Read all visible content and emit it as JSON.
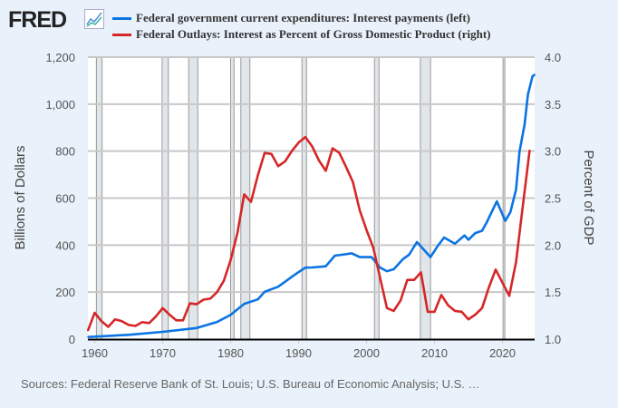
{
  "logo": "FRED",
  "chart_data": {
    "type": "line",
    "legend": "top",
    "grid": true,
    "xlim": [
      1959,
      2024.9
    ],
    "x_ticks": [
      "1960",
      "1970",
      "1980",
      "1990",
      "2000",
      "2010",
      "2020"
    ],
    "y_left": {
      "label": "Billions of Dollars",
      "range": [
        0,
        1200
      ],
      "ticks": [
        "0",
        "200",
        "400",
        "600",
        "800",
        "1,000",
        "1,200"
      ]
    },
    "y_right": {
      "label": "Percent of GDP",
      "range": [
        1.0,
        4.0
      ],
      "ticks": [
        "1.0",
        "1.5",
        "2.0",
        "2.5",
        "3.0",
        "3.5",
        "4.0"
      ]
    },
    "recessions": [
      [
        "1960-04",
        "1961-02"
      ],
      [
        "1969-12",
        "1970-11"
      ],
      [
        "1973-11",
        "1975-03"
      ],
      [
        "1980-01",
        "1980-07"
      ],
      [
        "1981-07",
        "1982-11"
      ],
      [
        "1990-07",
        "1991-03"
      ],
      [
        "2001-03",
        "2001-11"
      ],
      [
        "2007-12",
        "2009-06"
      ],
      [
        "2020-02",
        "2020-04"
      ]
    ],
    "series": [
      {
        "name": "Federal government current expenditures: Interest payments (left)",
        "axis": "left",
        "color": "#0b74e3",
        "x": [
          "1959-01",
          "1965-01",
          "1970-01",
          "1975-01",
          "1978-01",
          "1980-01",
          "1982-01",
          "1984-01",
          "1985-01",
          "1987-01",
          "1988-01",
          "1989-01",
          "1990-01",
          "1991-01",
          "1992-01",
          "1994-01",
          "1995-05",
          "1997-11",
          "1999-01",
          "2000-10",
          "2002-01",
          "2003-01",
          "2004-01",
          "2005-06",
          "2006-04",
          "2007-06",
          "2008-06",
          "2009-06",
          "2010-06",
          "2011-06",
          "2013-01",
          "2014-06",
          "2015-01",
          "2016-01",
          "2017-01",
          "2017-09",
          "2019-03",
          "2020-06",
          "2021-03",
          "2022-01",
          "2022-07",
          "2023-04",
          "2023-10",
          "2024-06",
          "2024-10"
        ],
        "values": [
          9,
          18,
          31,
          47,
          73,
          103,
          150,
          169,
          201,
          223,
          244,
          265,
          285,
          304,
          305,
          310,
          355,
          365,
          349,
          349,
          304,
          289,
          297,
          342,
          359,
          413,
          381,
          349,
          394,
          432,
          406,
          441,
          423,
          451,
          461,
          496,
          586,
          503,
          541,
          637,
          797,
          913,
          1041,
          1118,
          1126
        ]
      },
      {
        "name": "Federal Outlays: Interest as Percent of Gross Domestic Product (right)",
        "axis": "right",
        "color": "#d62728",
        "x": [
          1959,
          1960,
          1961,
          1962,
          1963,
          1964,
          1965,
          1966,
          1967,
          1968,
          1969,
          1970,
          1971,
          1972,
          1973,
          1974,
          1975,
          1976,
          1977,
          1978,
          1979,
          1980,
          1981,
          1982,
          1983,
          1984,
          1985,
          1986,
          1987,
          1988,
          1989,
          1990,
          1991,
          1992,
          1993,
          1994,
          1995,
          1996,
          1997,
          1998,
          1999,
          2000,
          2001,
          2002,
          2003,
          2004,
          2005,
          2006,
          2007,
          2008,
          2009,
          2010,
          2011,
          2012,
          2013,
          2014,
          2015,
          2016,
          2017,
          2018,
          2019,
          2020,
          2021,
          2022,
          2023,
          2024
        ],
        "values": [
          1.09,
          1.28,
          1.19,
          1.13,
          1.21,
          1.19,
          1.15,
          1.14,
          1.18,
          1.17,
          1.24,
          1.33,
          1.26,
          1.2,
          1.2,
          1.38,
          1.37,
          1.42,
          1.43,
          1.5,
          1.62,
          1.84,
          2.13,
          2.54,
          2.46,
          2.74,
          2.98,
          2.97,
          2.84,
          2.89,
          3.0,
          3.09,
          3.15,
          3.05,
          2.9,
          2.79,
          3.03,
          2.98,
          2.83,
          2.67,
          2.37,
          2.16,
          1.97,
          1.65,
          1.33,
          1.3,
          1.41,
          1.63,
          1.63,
          1.71,
          1.29,
          1.29,
          1.47,
          1.36,
          1.3,
          1.29,
          1.21,
          1.26,
          1.33,
          1.55,
          1.74,
          1.6,
          1.46,
          1.82,
          2.42,
          3.01
        ]
      }
    ]
  },
  "sources": "Sources: Federal Reserve Bank of St. Louis; U.S. Bureau of Economic Analysis; U.S. …"
}
